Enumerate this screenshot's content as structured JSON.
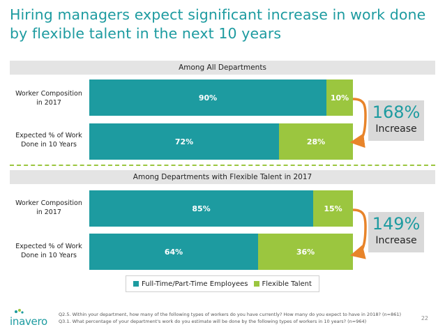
{
  "title": "Hiring managers expect significant increase in work done by flexible talent in the next 10 years",
  "chart_data": [
    {
      "type": "bar",
      "orientation": "horizontal",
      "stacked": true,
      "title": "Among All Departments",
      "categories": [
        "Worker Composition in 2017",
        "Expected % of Work Done in 10 Years"
      ],
      "series": [
        {
          "name": "Full-Time/Part-Time Employees",
          "values": [
            90,
            72
          ],
          "labels": [
            "90%",
            "72%"
          ]
        },
        {
          "name": "Flexible Talent",
          "values": [
            10,
            28
          ],
          "labels": [
            "10%",
            "28%"
          ]
        }
      ],
      "xlim": [
        0,
        100
      ],
      "annotation": {
        "value": "168%",
        "text": "Increase"
      }
    },
    {
      "type": "bar",
      "orientation": "horizontal",
      "stacked": true,
      "title": "Among Departments with Flexible Talent in 2017",
      "categories": [
        "Worker Composition in 2017",
        "Expected % of Work Done in 10 Years"
      ],
      "series": [
        {
          "name": "Full-Time/Part-Time Employees",
          "values": [
            85,
            64
          ],
          "labels": [
            "85%",
            "64%"
          ]
        },
        {
          "name": "Flexible Talent",
          "values": [
            15,
            36
          ],
          "labels": [
            "15%",
            "36%"
          ]
        }
      ],
      "xlim": [
        0,
        100
      ],
      "annotation": {
        "value": "149%",
        "text": "Increase"
      }
    }
  ],
  "legend": [
    {
      "label": "Full-Time/Part-Time Employees",
      "color": "#1d9ba0"
    },
    {
      "label": "Flexible Talent",
      "color": "#9bc63f"
    }
  ],
  "colors": {
    "primary": "#1d9ba0",
    "secondary": "#9bc63f",
    "arrow": "#e8842a"
  },
  "footnotes": [
    "Q2.5. Within your department, how many of the following types of workers do you have currently? How many do you expect to have in 2018? (n=861)",
    "Q3.1. What percentage of your department's work do you estimate will be done by the following types of workers in 10 years? (n=964)"
  ],
  "page_number": "22",
  "logo_text": "inavero"
}
